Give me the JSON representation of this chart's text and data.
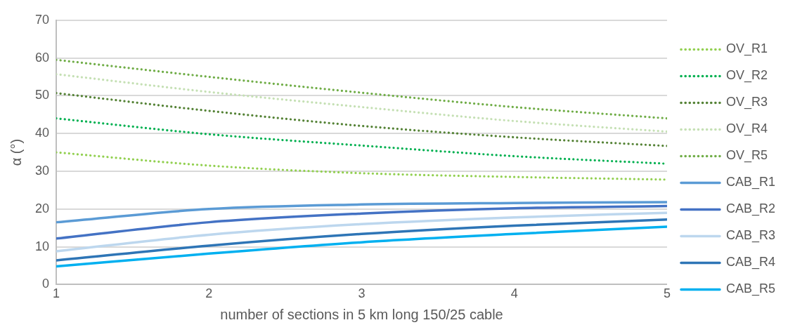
{
  "chart_data": {
    "type": "line",
    "xlabel": "number of sections in 5 km long 150/25 cable",
    "ylabel": "α (°)",
    "x": [
      1,
      2,
      3,
      4,
      5
    ],
    "xlim": [
      1,
      5
    ],
    "xticks": [
      1,
      2,
      3,
      4,
      5
    ],
    "ylim": [
      0,
      70
    ],
    "yticks": [
      0,
      10,
      20,
      30,
      40,
      50,
      60,
      70
    ],
    "grid": "y",
    "legend": "right",
    "marker": "none",
    "series": [
      {
        "name": "OV_R1",
        "color": "#92d050",
        "line_style": "dotted",
        "values": [
          35,
          31.5,
          29.5,
          28.5,
          27.8
        ]
      },
      {
        "name": "OV_R2",
        "color": "#00b050",
        "line_style": "dotted",
        "values": [
          44,
          39.8,
          36.8,
          34,
          32
        ]
      },
      {
        "name": "OV_R3",
        "color": "#548235",
        "line_style": "dotted",
        "values": [
          50.7,
          46,
          42,
          39,
          36.7
        ]
      },
      {
        "name": "OV_R4",
        "color": "#c5e0b4",
        "line_style": "dotted",
        "values": [
          55.7,
          51,
          47,
          43.3,
          40.5
        ]
      },
      {
        "name": "OV_R5",
        "color": "#70ad47",
        "line_style": "dotted",
        "values": [
          59.5,
          55,
          50.8,
          47,
          44
        ]
      },
      {
        "name": "CAB_R1",
        "color": "#5b9bd5",
        "line_style": "solid",
        "values": [
          16.5,
          20,
          21.2,
          21.6,
          21.8
        ]
      },
      {
        "name": "CAB_R2",
        "color": "#4472c4",
        "line_style": "solid",
        "values": [
          12.2,
          16.5,
          18.8,
          20.2,
          20.8
        ]
      },
      {
        "name": "CAB_R3",
        "color": "#bdd7ee",
        "line_style": "solid",
        "values": [
          8.8,
          13.2,
          16,
          17.8,
          19
        ]
      },
      {
        "name": "CAB_R4",
        "color": "#2e75b6",
        "line_style": "solid",
        "values": [
          6.4,
          10.3,
          13.4,
          15.6,
          17.2
        ]
      },
      {
        "name": "CAB_R5",
        "color": "#00b0f0",
        "line_style": "solid",
        "values": [
          4.8,
          8.2,
          11.2,
          13.4,
          15.3
        ]
      }
    ]
  }
}
